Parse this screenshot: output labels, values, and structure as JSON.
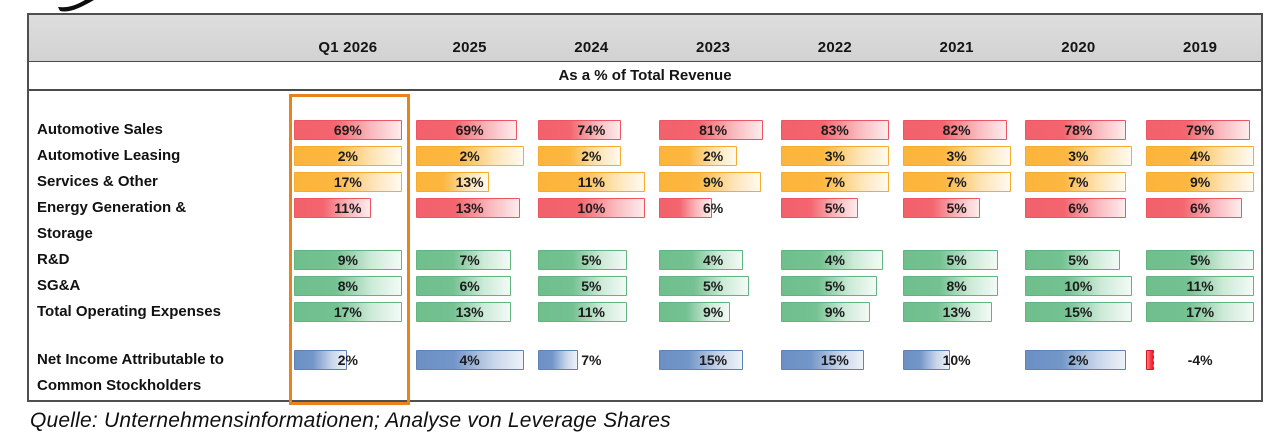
{
  "caption": "Quelle: Unternehmensinformationen; Analyse von Leverage Shares",
  "header": {
    "columns": [
      "Q1 2026",
      "2025",
      "2024",
      "2023",
      "2022",
      "2021",
      "2020",
      "2019"
    ],
    "subtitle": "As a % of Total Revenue"
  },
  "highlight": {
    "column": "Q1 2026",
    "color": "#e8821e"
  },
  "colors": {
    "bar_red": "#f2616c",
    "bar_orange": "#fcb53b",
    "bar_green": "#6fbf8d",
    "bar_blue": "#6c90c4",
    "bar_negative": "#ee1c2a",
    "header_bg": "#d8d8d8",
    "border": "#4f4f4f"
  },
  "chart_data": {
    "type": "table",
    "title": "As a % of Total Revenue",
    "categories": [
      "Q1 2026",
      "2025",
      "2024",
      "2023",
      "2022",
      "2021",
      "2020",
      "2019"
    ],
    "unit": "%",
    "rows": [
      {
        "name": "Automotive Sales",
        "color": "red",
        "values": [
          69,
          69,
          74,
          81,
          83,
          82,
          78,
          79
        ]
      },
      {
        "name": "Automotive Leasing",
        "color": "orange",
        "values": [
          2,
          2,
          2,
          2,
          3,
          3,
          3,
          4
        ]
      },
      {
        "name": "Services & Other",
        "color": "orange",
        "values": [
          17,
          13,
          11,
          9,
          7,
          7,
          7,
          9
        ]
      },
      {
        "name": "Energy Generation & Storage",
        "color": "red",
        "values": [
          11,
          13,
          10,
          6,
          5,
          5,
          6,
          6
        ]
      },
      {
        "name": "R&D",
        "color": "green",
        "values": [
          9,
          7,
          5,
          4,
          4,
          5,
          5,
          5
        ]
      },
      {
        "name": "SG&A",
        "color": "green",
        "values": [
          8,
          6,
          5,
          5,
          5,
          8,
          10,
          11
        ]
      },
      {
        "name": "Total Operating Expenses",
        "color": "green",
        "values": [
          17,
          13,
          11,
          9,
          9,
          13,
          15,
          17
        ]
      },
      {
        "name": "Net Income Attributable to Common Stockholders",
        "color": "blue",
        "values": [
          2,
          4,
          7,
          15,
          15,
          10,
          2,
          -4
        ]
      }
    ]
  },
  "render": {
    "lines": [
      {
        "label": "Automotive Sales",
        "row": 0
      },
      {
        "label": "Automotive Leasing",
        "row": 1
      },
      {
        "label": "Services & Other",
        "row": 2
      },
      {
        "label": "Energy Generation &",
        "row": 3
      },
      {
        "label": "Storage",
        "row": null
      },
      {
        "label": "R&D",
        "row": 4
      },
      {
        "label": "SG&A",
        "row": 5
      },
      {
        "label": "Total Operating Expenses",
        "row": 6
      },
      {
        "label": "",
        "row": null,
        "blank": true
      },
      {
        "label": "Net Income Attributable to",
        "row": 7
      },
      {
        "label": "Common Stockholders",
        "row": null
      }
    ],
    "bar_fractions": [
      [
        1.0,
        0.95,
        0.8,
        0.97,
        1.0,
        0.97,
        0.95,
        0.97
      ],
      [
        1.0,
        1.0,
        0.8,
        0.75,
        1.0,
        1.0,
        1.0,
        1.0
      ],
      [
        1.0,
        0.72,
        1.0,
        0.95,
        1.0,
        1.0,
        0.95,
        1.0
      ],
      [
        0.75,
        0.97,
        1.0,
        0.55,
        0.75,
        0.75,
        0.95,
        0.9
      ],
      [
        1.0,
        0.9,
        0.85,
        0.8,
        0.95,
        0.9,
        0.9,
        1.0
      ],
      [
        1.0,
        0.9,
        0.85,
        0.85,
        0.9,
        0.9,
        1.0,
        1.0
      ],
      [
        1.0,
        0.9,
        0.85,
        0.7,
        0.85,
        0.85,
        1.0,
        1.0
      ],
      [
        0.55,
        1.0,
        0.45,
        0.8,
        0.8,
        0.5,
        0.95,
        0.18
      ]
    ]
  }
}
